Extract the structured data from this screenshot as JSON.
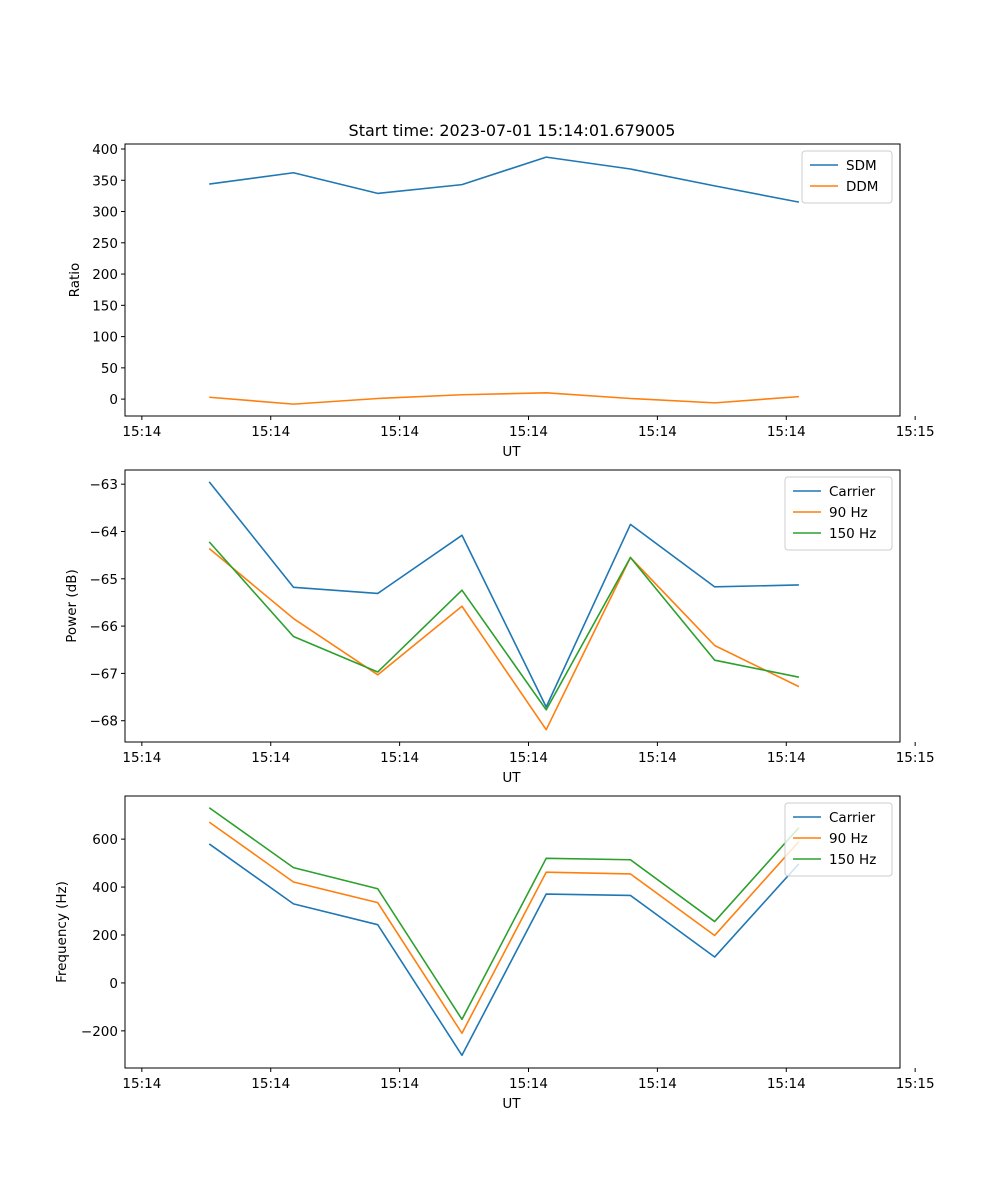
{
  "figure_title": "Start time: 2023-07-01 15:14:01.679005",
  "chart_data": [
    {
      "type": "line",
      "name": "ratio",
      "title": "Start time: 2023-07-01 15:14:01.679005",
      "xlabel": "UT",
      "ylabel": "Ratio",
      "xlim": [
        0,
        9.2
      ],
      "ylim": [
        -27,
        408
      ],
      "yticks": [
        0,
        50,
        100,
        150,
        200,
        250,
        300,
        350,
        400
      ],
      "xticks": [
        0.2,
        1.73,
        3.26,
        4.79,
        6.32,
        7.85,
        9.38
      ],
      "xtick_labels": [
        "15:14",
        "15:14",
        "15:14",
        "15:14",
        "15:14",
        "15:14",
        "15:15"
      ],
      "x": [
        1,
        2,
        3,
        4,
        5,
        6,
        7,
        8
      ],
      "series": [
        {
          "name": "SDM",
          "color": "#1f77b4",
          "values": [
            344,
            362,
            329,
            343,
            387,
            368,
            341,
            315
          ]
        },
        {
          "name": "DDM",
          "color": "#ff7f0e",
          "values": [
            3,
            -8,
            1,
            7,
            10,
            1,
            -6,
            4
          ]
        }
      ],
      "legend": "top-right"
    },
    {
      "type": "line",
      "name": "power",
      "title": "",
      "xlabel": "UT",
      "ylabel": "Power (dB)",
      "xlim": [
        0,
        9.2
      ],
      "ylim": [
        -68.45,
        -62.7
      ],
      "yticks": [
        -63,
        -64,
        -65,
        -66,
        -67,
        -68
      ],
      "xticks": [
        0.2,
        1.73,
        3.26,
        4.79,
        6.32,
        7.85,
        9.38
      ],
      "xtick_labels": [
        "15:14",
        "15:14",
        "15:14",
        "15:14",
        "15:14",
        "15:14",
        "15:15"
      ],
      "x": [
        1,
        2,
        3,
        4,
        5,
        6,
        7,
        8
      ],
      "series": [
        {
          "name": "Carrier",
          "color": "#1f77b4",
          "values": [
            -62.95,
            -65.18,
            -65.31,
            -64.08,
            -67.71,
            -63.85,
            -65.17,
            -65.13
          ]
        },
        {
          "name": "90 Hz",
          "color": "#ff7f0e",
          "values": [
            -64.36,
            -65.84,
            -67.03,
            -65.58,
            -68.19,
            -64.55,
            -66.41,
            -67.28
          ]
        },
        {
          "name": "150 Hz",
          "color": "#2ca02c",
          "values": [
            -64.22,
            -66.22,
            -66.97,
            -65.24,
            -67.77,
            -64.55,
            -66.72,
            -67.08
          ]
        }
      ],
      "legend": "top-right"
    },
    {
      "type": "line",
      "name": "frequency",
      "title": "",
      "xlabel": "UT",
      "ylabel": "Frequency (Hz)",
      "xlim": [
        0,
        9.2
      ],
      "ylim": [
        -355,
        780
      ],
      "yticks": [
        600,
        400,
        200,
        0,
        -200
      ],
      "xticks": [
        0.2,
        1.73,
        3.26,
        4.79,
        6.32,
        7.85,
        9.38
      ],
      "xtick_labels": [
        "15:14",
        "15:14",
        "15:14",
        "15:14",
        "15:14",
        "15:14",
        "15:15"
      ],
      "x": [
        1,
        2,
        3,
        4,
        5,
        6,
        7,
        8
      ],
      "series": [
        {
          "name": "Carrier",
          "color": "#1f77b4",
          "values": [
            580,
            330,
            243,
            -302,
            371,
            365,
            108,
            497
          ]
        },
        {
          "name": "90 Hz",
          "color": "#ff7f0e",
          "values": [
            671,
            421,
            335,
            -210,
            462,
            455,
            198,
            590
          ]
        },
        {
          "name": "150 Hz",
          "color": "#2ca02c",
          "values": [
            731,
            481,
            393,
            -152,
            520,
            514,
            256,
            648
          ]
        }
      ],
      "legend": "top-right"
    }
  ]
}
